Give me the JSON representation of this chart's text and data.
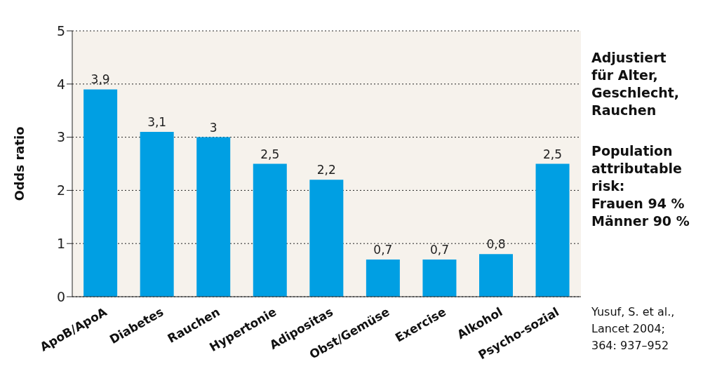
{
  "chart_data": {
    "type": "bar",
    "ylabel": "Odds ratio",
    "categories": [
      "ApoB/ApoA",
      "Diabetes",
      "Rauchen",
      "Hypertonie",
      "Adipositas",
      "Obst/Gemüse",
      "Exercise",
      "Alkohol",
      "Psycho-sozial"
    ],
    "values": [
      3.9,
      3.1,
      3,
      2.5,
      2.2,
      0.7,
      0.7,
      0.8,
      2.5
    ],
    "value_labels": [
      "3,9",
      "3,1",
      "3",
      "2,5",
      "2,2",
      "0,7",
      "0,7",
      "0,8",
      "2,5"
    ],
    "color": "#009fe3",
    "ylim": [
      0,
      5
    ],
    "yticks": [
      0,
      1,
      2,
      3,
      4,
      5
    ],
    "grid": "y",
    "annotations": [
      "Adjustiert\nfür Alter,\nGeschlecht,\nRauchen",
      "Population\nattributable\nrisk:\nFrauen 94 %\nMänner 90 %",
      "Yusuf, S. et al.,\nLancet 2004;\n364: 937–952"
    ]
  }
}
